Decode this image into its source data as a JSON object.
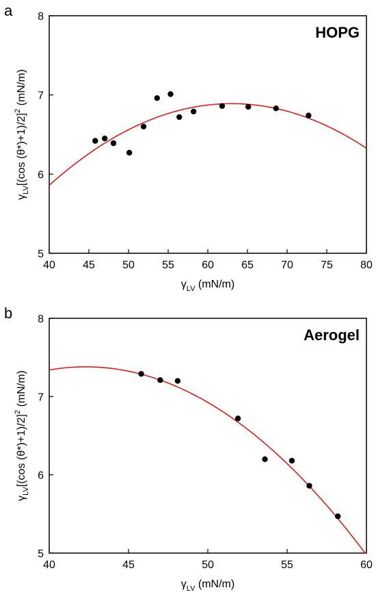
{
  "chart_data": [
    {
      "type": "scatter",
      "panel": "a",
      "label": "HOPG",
      "xlabel": "γLV (mN/m)",
      "ylabel": "γLV[(cos (θ*)+1)/2]² (mN/m)",
      "xlim": [
        40,
        80
      ],
      "ylim": [
        5,
        8
      ],
      "xticks": [
        40,
        45,
        50,
        55,
        60,
        65,
        70,
        75,
        80
      ],
      "yticks": [
        5,
        6,
        7,
        8
      ],
      "points": [
        {
          "x": 45.8,
          "y": 6.42
        },
        {
          "x": 47.0,
          "y": 6.45
        },
        {
          "x": 48.1,
          "y": 6.39
        },
        {
          "x": 50.1,
          "y": 6.27
        },
        {
          "x": 51.9,
          "y": 6.6
        },
        {
          "x": 53.6,
          "y": 6.96
        },
        {
          "x": 55.3,
          "y": 7.01
        },
        {
          "x": 56.4,
          "y": 6.72
        },
        {
          "x": 58.2,
          "y": 6.79
        },
        {
          "x": 61.8,
          "y": 6.86
        },
        {
          "x": 65.1,
          "y": 6.85
        },
        {
          "x": 68.6,
          "y": 6.83
        },
        {
          "x": 72.7,
          "y": 6.74
        }
      ],
      "fit": {
        "type": "quadratic",
        "vertex_x": 63,
        "vertex_y": 6.89,
        "a": -0.00195
      },
      "colors": {
        "points": "#000000",
        "fit": "#e01a1a"
      }
    },
    {
      "type": "scatter",
      "panel": "b",
      "label": "Aerogel",
      "xlabel": "γLV (mN/m)",
      "ylabel": "γLV[(cos (θ*)+1)/2]² (mN/m)",
      "xlim": [
        40,
        60
      ],
      "ylim": [
        5,
        8
      ],
      "xticks": [
        40,
        45,
        50,
        55,
        60
      ],
      "yticks": [
        5,
        6,
        7,
        8
      ],
      "points": [
        {
          "x": 45.8,
          "y": 7.29
        },
        {
          "x": 47.0,
          "y": 7.21
        },
        {
          "x": 48.1,
          "y": 7.2
        },
        {
          "x": 51.9,
          "y": 6.72
        },
        {
          "x": 53.6,
          "y": 6.2
        },
        {
          "x": 55.3,
          "y": 6.18
        },
        {
          "x": 56.4,
          "y": 5.86
        },
        {
          "x": 58.2,
          "y": 5.47
        }
      ],
      "fit": {
        "type": "quadratic",
        "vertex_x": 42.3,
        "vertex_y": 7.38,
        "a": -0.00767
      },
      "colors": {
        "points": "#000000",
        "fit": "#e01a1a"
      }
    }
  ]
}
